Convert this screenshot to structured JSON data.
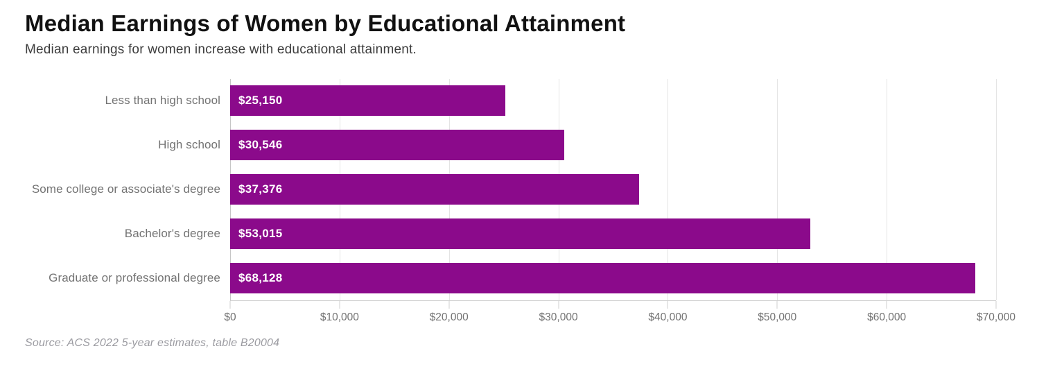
{
  "header": {
    "title": "Median Earnings of Women by Educational Attainment",
    "subtitle": "Median earnings for women increase with educational attainment."
  },
  "chart_data": {
    "type": "bar",
    "orientation": "horizontal",
    "title": "Median Earnings of Women by Educational Attainment",
    "subtitle": "Median earnings for women increase with educational attainment.",
    "categories": [
      "Less than high school",
      "High school",
      "Some college or associate's degree",
      "Bachelor's degree",
      "Graduate or professional degree"
    ],
    "values": [
      25150,
      30546,
      37376,
      53015,
      68128
    ],
    "value_labels": [
      "$25,150",
      "$30,546",
      "$37,376",
      "$53,015",
      "$68,128"
    ],
    "xlim": [
      0,
      70000
    ],
    "x_ticks": [
      0,
      10000,
      20000,
      30000,
      40000,
      50000,
      60000,
      70000
    ],
    "x_tick_labels": [
      "$0",
      "$10,000",
      "$20,000",
      "$30,000",
      "$40,000",
      "$50,000",
      "$60,000",
      "$70,000"
    ],
    "grid": "vertical-gridlines-on",
    "legend": "none",
    "colors": {
      "bar": "#8b0a8b",
      "value_label": "#ffffff",
      "category_label": "#737373",
      "tick_label": "#737373",
      "gridline": "#e4e4e4",
      "axis_line": "#cfcfcf",
      "title": "#111111",
      "subtitle": "#3d3d3d",
      "source": "#9b9ba1"
    }
  },
  "footer": {
    "source": "Source: ACS 2022 5-year estimates, table B20004"
  }
}
